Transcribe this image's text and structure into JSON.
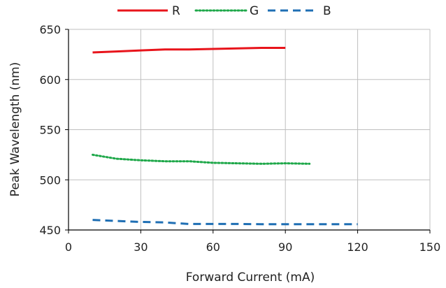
{
  "chart_data": {
    "type": "line",
    "title": "",
    "xlabel": "Forward Current (mA)",
    "ylabel": "Peak Wavelength (nm)",
    "xlim": [
      0,
      150
    ],
    "ylim": [
      450,
      650
    ],
    "xticks": [
      0,
      30,
      60,
      90,
      120,
      150
    ],
    "yticks": [
      450,
      500,
      550,
      600,
      650
    ],
    "grid": true,
    "legend_position": "top",
    "series": [
      {
        "name": "R",
        "color": "#e8141b",
        "style": "solid",
        "x": [
          10,
          20,
          30,
          40,
          50,
          60,
          70,
          80,
          90
        ],
        "y": [
          627,
          628,
          629,
          630,
          630,
          630.5,
          631,
          631.5,
          631.5
        ]
      },
      {
        "name": "G",
        "color": "#1fa84a",
        "style": "dotted",
        "x": [
          10,
          20,
          30,
          40,
          50,
          60,
          70,
          80,
          90,
          100
        ],
        "y": [
          525,
          521,
          519.5,
          518.5,
          518.5,
          517,
          516.5,
          516,
          516.5,
          516
        ]
      },
      {
        "name": "B",
        "color": "#1f6fb4",
        "style": "dashed",
        "x": [
          10,
          20,
          30,
          40,
          50,
          60,
          70,
          80,
          90,
          100,
          110,
          120
        ],
        "y": [
          460,
          459,
          458,
          457.5,
          456,
          456,
          456,
          455.8,
          455.8,
          455.8,
          455.8,
          455.8
        ]
      }
    ]
  }
}
